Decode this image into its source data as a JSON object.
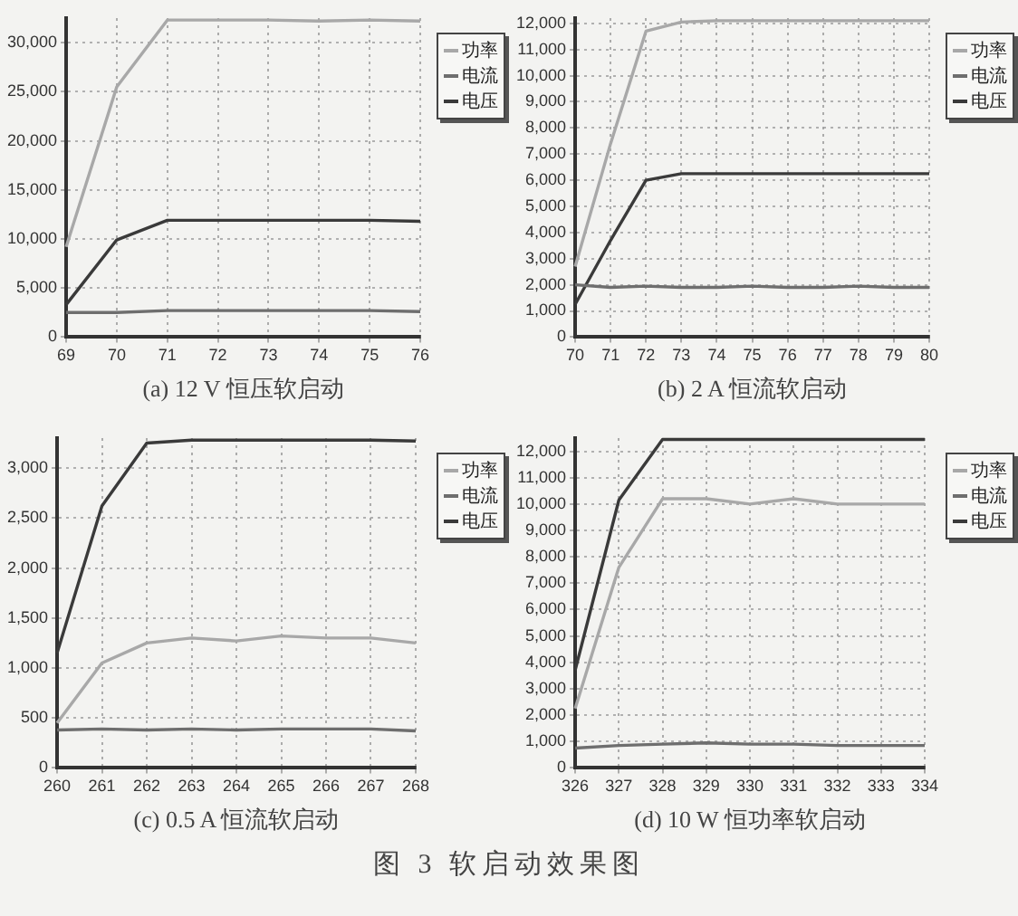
{
  "chart_data": [
    {
      "type": "line",
      "title": "(a) 12 V 恒压软启动",
      "x": [
        69,
        70,
        71,
        72,
        73,
        74,
        75,
        76
      ],
      "xlim": [
        69,
        76
      ],
      "xticks": [
        69,
        70,
        71,
        72,
        73,
        74,
        75,
        76
      ],
      "ylim": [
        0,
        32500
      ],
      "yticks": [
        {
          "value": 0,
          "label": "0"
        },
        {
          "value": 5000,
          "label": "5,000"
        },
        {
          "value": 10000,
          "label": "10,000"
        },
        {
          "value": 15000,
          "label": "15,000"
        },
        {
          "value": 20000,
          "label": "20,000"
        },
        {
          "value": 25000,
          "label": "25,000"
        },
        {
          "value": 30000,
          "label": "30,000"
        }
      ],
      "grid": true,
      "legend": "right",
      "series": [
        {
          "name": "功率",
          "color": "#a8a8a8",
          "values": [
            9200,
            25500,
            32300,
            32300,
            32300,
            32200,
            32300,
            32200
          ]
        },
        {
          "name": "电流",
          "color": "#6e6e6e",
          "values": [
            2500,
            2500,
            2700,
            2700,
            2700,
            2700,
            2700,
            2600
          ]
        },
        {
          "name": "电压",
          "color": "#3a3a3a",
          "values": [
            3300,
            9900,
            11900,
            11900,
            11900,
            11900,
            11900,
            11800
          ]
        }
      ]
    },
    {
      "type": "line",
      "title": "(b) 2 A 恒流软启动",
      "x": [
        70,
        71,
        72,
        73,
        74,
        75,
        76,
        77,
        78,
        79,
        80
      ],
      "xlim": [
        70,
        80
      ],
      "xticks": [
        70,
        71,
        72,
        73,
        74,
        75,
        76,
        77,
        78,
        79,
        80
      ],
      "ylim": [
        0,
        12200
      ],
      "yticks": [
        {
          "value": 0,
          "label": "0"
        },
        {
          "value": 1000,
          "label": "1,000"
        },
        {
          "value": 2000,
          "label": "2,000"
        },
        {
          "value": 3000,
          "label": "3,000"
        },
        {
          "value": 4000,
          "label": "4,000"
        },
        {
          "value": 5000,
          "label": "5,000"
        },
        {
          "value": 6000,
          "label": "6,000"
        },
        {
          "value": 7000,
          "label": "7,000"
        },
        {
          "value": 8000,
          "label": "8,000"
        },
        {
          "value": 9000,
          "label": "9,000"
        },
        {
          "value": 10000,
          "label": "10,000"
        },
        {
          "value": 11000,
          "label": "11,000"
        },
        {
          "value": 12000,
          "label": "12,000"
        }
      ],
      "grid": true,
      "legend": "right",
      "series": [
        {
          "name": "功率",
          "color": "#a8a8a8",
          "values": [
            2700,
            7400,
            11700,
            12050,
            12100,
            12100,
            12100,
            12100,
            12100,
            12100,
            12100
          ]
        },
        {
          "name": "电流",
          "color": "#6e6e6e",
          "values": [
            2000,
            1900,
            1950,
            1900,
            1900,
            1950,
            1900,
            1900,
            1950,
            1900,
            1900
          ]
        },
        {
          "name": "电压",
          "color": "#3a3a3a",
          "values": [
            1250,
            3700,
            6000,
            6250,
            6250,
            6250,
            6250,
            6250,
            6250,
            6250,
            6250
          ]
        }
      ]
    },
    {
      "type": "line",
      "title": "(c) 0.5 A 恒流软启动",
      "x": [
        260,
        261,
        262,
        263,
        264,
        265,
        266,
        267,
        268
      ],
      "xlim": [
        260,
        268
      ],
      "xticks": [
        260,
        261,
        262,
        263,
        264,
        265,
        266,
        267,
        268
      ],
      "ylim": [
        0,
        3300
      ],
      "yticks": [
        {
          "value": 0,
          "label": "0"
        },
        {
          "value": 500,
          "label": "500"
        },
        {
          "value": 1000,
          "label": "1,000"
        },
        {
          "value": 1500,
          "label": "1,500"
        },
        {
          "value": 2000,
          "label": "2,000"
        },
        {
          "value": 2500,
          "label": "2,500"
        },
        {
          "value": 3000,
          "label": "3,000"
        }
      ],
      "grid": true,
      "legend": "right",
      "series": [
        {
          "name": "功率",
          "color": "#a8a8a8",
          "values": [
            450,
            1050,
            1250,
            1300,
            1270,
            1320,
            1300,
            1300,
            1250
          ]
        },
        {
          "name": "电流",
          "color": "#6e6e6e",
          "values": [
            380,
            390,
            380,
            390,
            380,
            390,
            390,
            390,
            370
          ]
        },
        {
          "name": "电压",
          "color": "#3a3a3a",
          "values": [
            1150,
            2620,
            3250,
            3280,
            3280,
            3280,
            3280,
            3280,
            3270
          ]
        }
      ]
    },
    {
      "type": "line",
      "title": "(d) 10 W 恒功率软启动",
      "x": [
        326,
        327,
        328,
        329,
        330,
        331,
        332,
        333,
        334
      ],
      "xlim": [
        326,
        334
      ],
      "xticks": [
        326,
        327,
        328,
        329,
        330,
        331,
        332,
        333,
        334
      ],
      "ylim": [
        0,
        12500
      ],
      "yticks": [
        {
          "value": 0,
          "label": "0"
        },
        {
          "value": 1000,
          "label": "1,000"
        },
        {
          "value": 2000,
          "label": "2,000"
        },
        {
          "value": 3000,
          "label": "3,000"
        },
        {
          "value": 4000,
          "label": "4,000"
        },
        {
          "value": 5000,
          "label": "5,000"
        },
        {
          "value": 6000,
          "label": "6,000"
        },
        {
          "value": 7000,
          "label": "7,000"
        },
        {
          "value": 8000,
          "label": "8,000"
        },
        {
          "value": 9000,
          "label": "9,000"
        },
        {
          "value": 10000,
          "label": "10,000"
        },
        {
          "value": 11000,
          "label": "11,000"
        },
        {
          "value": 12000,
          "label": "12,000"
        }
      ],
      "grid": true,
      "legend": "right",
      "series": [
        {
          "name": "功率",
          "color": "#a8a8a8",
          "values": [
            2250,
            7600,
            10200,
            10200,
            10000,
            10200,
            10000,
            10000,
            10000
          ]
        },
        {
          "name": "电流",
          "color": "#6e6e6e",
          "values": [
            750,
            850,
            900,
            950,
            900,
            900,
            850,
            850,
            850
          ]
        },
        {
          "name": "电压",
          "color": "#3a3a3a",
          "values": [
            3700,
            10150,
            12450,
            12450,
            12450,
            12450,
            12450,
            12450,
            12450
          ]
        }
      ],
      "annotations": [
        "图 3 软启动效果图"
      ]
    }
  ]
}
